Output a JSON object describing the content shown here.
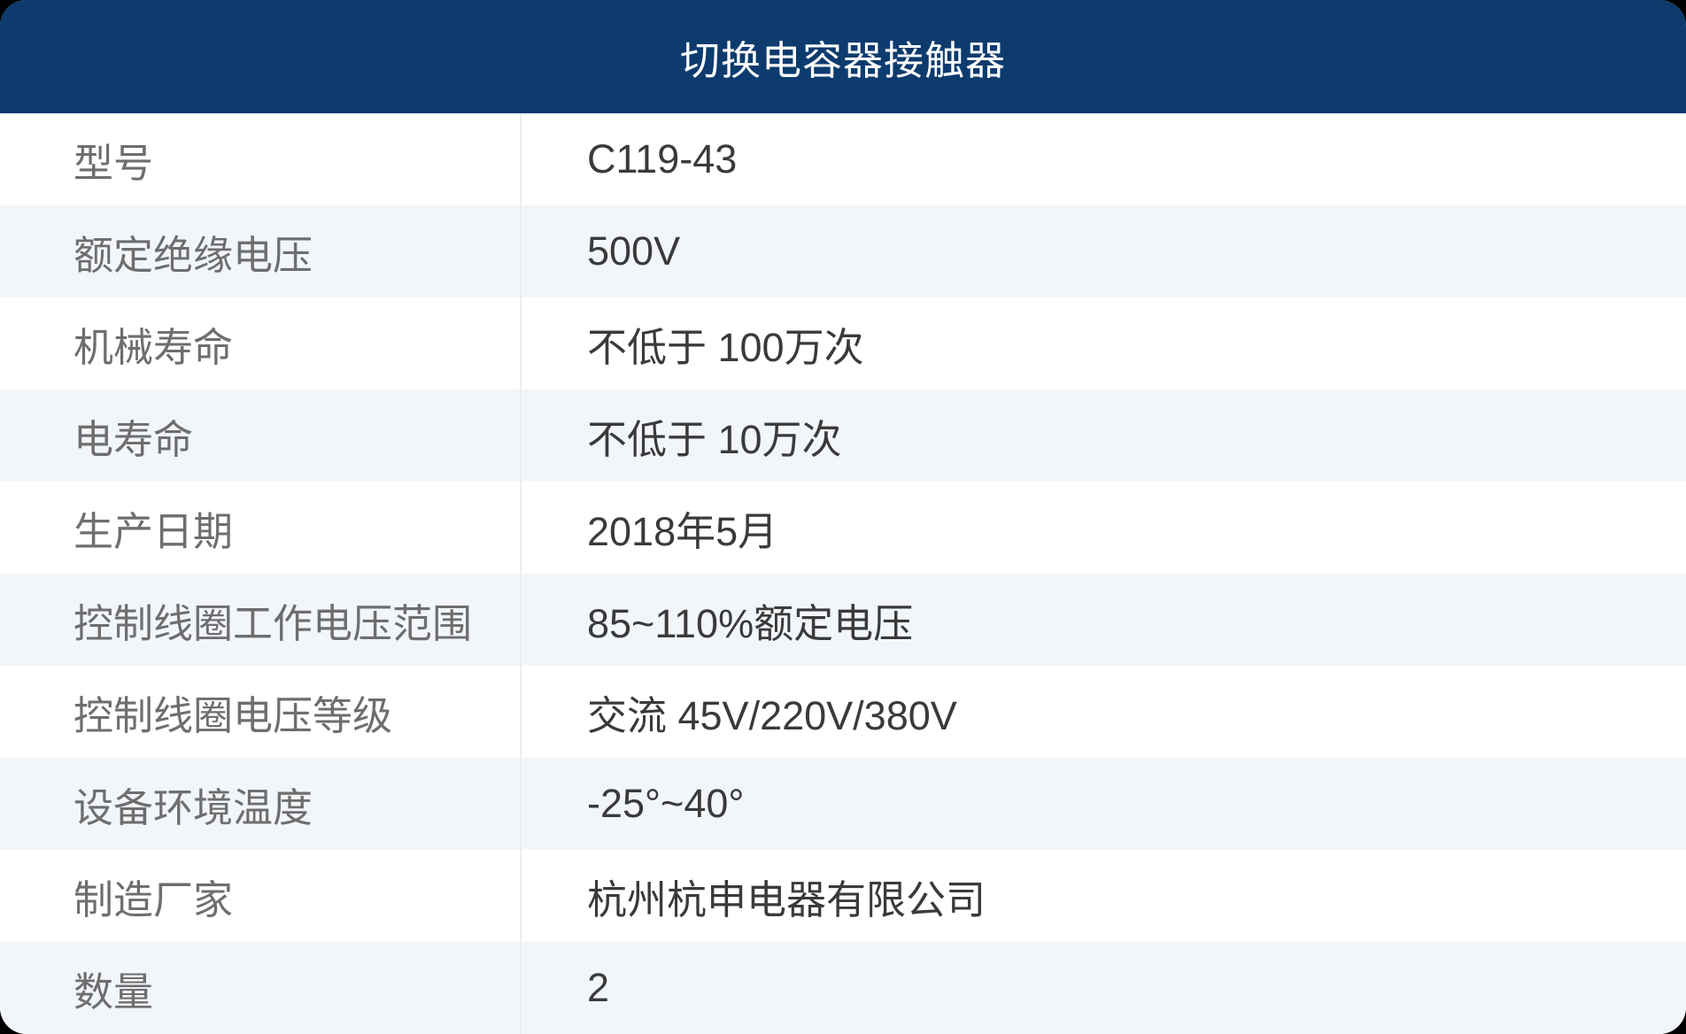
{
  "title": "切换电容器接触器",
  "rows": [
    {
      "label": "型号",
      "value": "C119-43"
    },
    {
      "label": "额定绝缘电压",
      "value": "500V"
    },
    {
      "label": "机械寿命",
      "value": "不低于 100万次"
    },
    {
      "label": "电寿命",
      "value": "不低于 10万次"
    },
    {
      "label": "生产日期",
      "value": "2018年5月"
    },
    {
      "label": "控制线圈工作电压范围",
      "value": "85~110%额定电压"
    },
    {
      "label": "控制线圈电压等级",
      "value": "交流 45V/220V/380V"
    },
    {
      "label": "设备环境温度",
      "value": "-25°~40°"
    },
    {
      "label": "制造厂家",
      "value": "杭州杭申电器有限公司"
    },
    {
      "label": "数量",
      "value": "2"
    }
  ],
  "colors": {
    "header-bg": "#0d3b6e",
    "row-alt-bg": "#f2f6fb",
    "row-bg": "#ffffff",
    "label-color": "#6e6e6e",
    "value-color": "#3a3a3a",
    "divider-color": "#ededed",
    "header-text": "#ffffff",
    "page-bg": "#000000"
  }
}
